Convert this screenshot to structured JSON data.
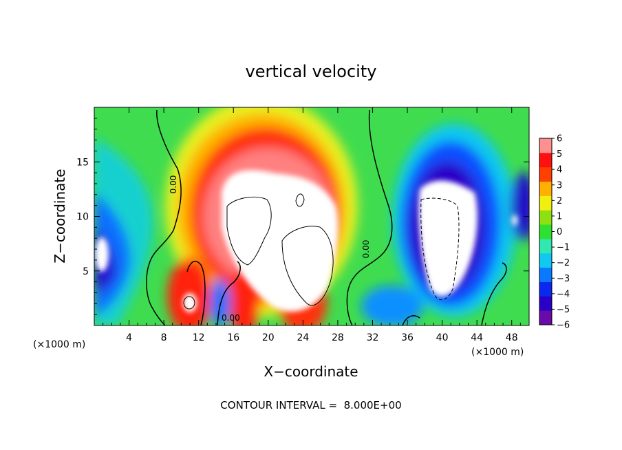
{
  "chart_data": {
    "type": "heatmap",
    "title": "vertical velocity",
    "xlabel": "X−coordinate",
    "ylabel": "Z−coordinate",
    "x_unit": "(×1000 m)",
    "y_unit": "(×1000 m)",
    "xlim": [
      0,
      50
    ],
    "ylim": [
      0,
      20
    ],
    "x_ticks": [
      4,
      8,
      12,
      16,
      20,
      24,
      28,
      32,
      36,
      40,
      44,
      48
    ],
    "y_ticks": [
      5,
      10,
      15
    ],
    "colorbar": {
      "min": -6,
      "max": 6,
      "ticks": [
        "6",
        "5",
        "4",
        "3",
        "2",
        "1",
        "0",
        "−1",
        "−2",
        "−3",
        "−4",
        "−5",
        "−6"
      ],
      "colors": [
        "#6a0aa8",
        "#2a00c8",
        "#0a28f0",
        "#0a78ff",
        "#10c8f0",
        "#30e8b0",
        "#2ee030",
        "#8ee010",
        "#f0f010",
        "#ffb000",
        "#ff4000",
        "#ff1010",
        "#ff9090"
      ]
    },
    "contour_interval_text": "CONTOUR INTERVAL =  8.000E+00",
    "contour_labels": [
      "0.00",
      "0.00",
      "0.00"
    ],
    "features": [
      {
        "name": "updraft-core",
        "x_center": 20,
        "z_center": 11,
        "max_value": 6,
        "sign": "positive"
      },
      {
        "name": "downdraft-core",
        "x_center": 40,
        "z_center": 8,
        "min_value": -6,
        "sign": "negative"
      },
      {
        "name": "shallow-updraft",
        "x_center": 10.8,
        "z_center": 2.2,
        "max_value": 6,
        "sign": "positive"
      },
      {
        "name": "left-downdraft",
        "x_center": 1,
        "z_center": 6,
        "min_value": -6,
        "sign": "negative"
      }
    ]
  }
}
